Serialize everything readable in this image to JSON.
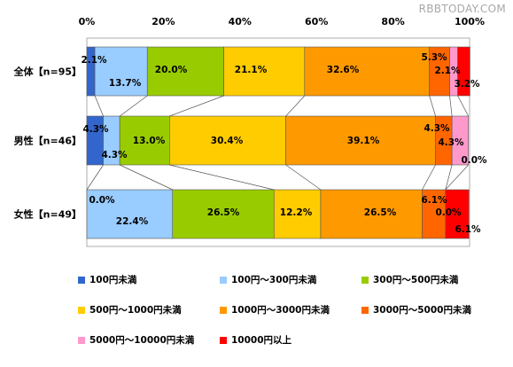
{
  "watermark": "RBBTODAY.COM",
  "chart_data": {
    "type": "bar",
    "orientation": "horizontal",
    "stacked": "percent",
    "categories": [
      "全体【n=95】",
      "男性【n=46】",
      "女性【n=49】"
    ],
    "xlim": [
      0,
      100
    ],
    "x_ticks": [
      "0%",
      "20%",
      "40%",
      "60%",
      "80%",
      "100%"
    ],
    "grid": false,
    "legend_position": "bottom",
    "series_lines": true,
    "series": [
      {
        "name": "100円未満",
        "color": "#3366cc",
        "values": [
          2.1,
          4.3,
          0.0
        ]
      },
      {
        "name": "100円～300円未満",
        "color": "#99ccff",
        "values": [
          13.7,
          4.3,
          22.4
        ]
      },
      {
        "name": "300円～500円未満",
        "color": "#99cc00",
        "values": [
          20.0,
          13.0,
          26.5
        ]
      },
      {
        "name": "500円～1000円未満",
        "color": "#ffcc00",
        "values": [
          21.1,
          30.4,
          12.2
        ]
      },
      {
        "name": "1000円～3000円未満",
        "color": "#ff9900",
        "values": [
          32.6,
          39.1,
          26.5
        ]
      },
      {
        "name": "3000円～5000円未満",
        "color": "#ff6600",
        "values": [
          5.3,
          4.3,
          6.1
        ]
      },
      {
        "name": "5000円～10000円未満",
        "color": "#ff99cc",
        "values": [
          2.1,
          4.3,
          0.0
        ]
      },
      {
        "name": "10000円以上",
        "color": "#ff0000",
        "values": [
          3.2,
          0.0,
          6.1
        ]
      }
    ],
    "data_labels": [
      [
        "2.1%",
        "13.7%",
        "20.0%",
        "21.1%",
        "32.6%",
        "5.3%",
        "2.1%",
        "3.2%"
      ],
      [
        "4.3%",
        "4.3%",
        "13.0%",
        "30.4%",
        "39.1%",
        "4.3%",
        "4.3%",
        "0.0%"
      ],
      [
        "0.0%",
        "22.4%",
        "26.5%",
        "12.2%",
        "26.5%",
        "6.1%",
        "0.0%",
        "6.1%"
      ]
    ]
  }
}
